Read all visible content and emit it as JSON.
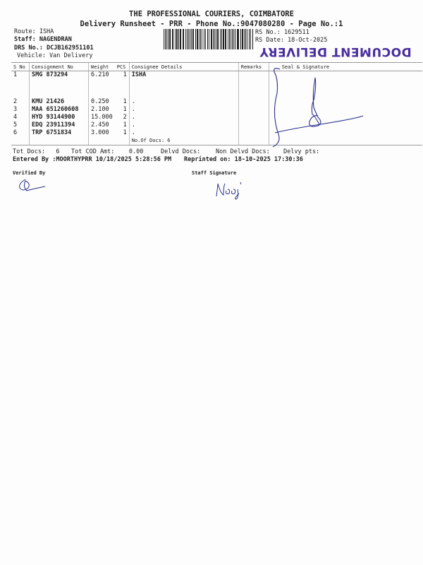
{
  "header": {
    "company": "THE PROFESSIONAL COURIERS, COIMBATORE",
    "subtitle": "Delivery Runsheet - PRR - Phone No.:9047080280 - Page No.:1"
  },
  "info": {
    "route": "Route: ISHA",
    "staff": "Staff: NAGENDRAN",
    "drs": "DRS No.: DCJB162951101",
    "vehicle": "Vehicle: Van Delivery",
    "rs_no": "RS No.: 1629511",
    "rs_date": "RS Date: 18-Oct-2025"
  },
  "stamp": "DOCUMENT DELIVERY",
  "table": {
    "headers": [
      "S No",
      "Consignment No",
      "Weight",
      "PCS",
      "Consignee Details",
      "Remarks",
      "Seal & Signature"
    ],
    "rows": [
      {
        "sno": "1",
        "cn": "SMG 873294",
        "wt": "6.210",
        "pcs": "1",
        "consignee": "ISHA"
      },
      {
        "sno": "2",
        "cn": "KMU 21426",
        "wt": "0.250",
        "pcs": "1",
        "consignee": "."
      },
      {
        "sno": "3",
        "cn": "MAA 651260608",
        "wt": "2.100",
        "pcs": "1",
        "consignee": "."
      },
      {
        "sno": "4",
        "cn": "HYD 93144900",
        "wt": "15.000",
        "pcs": "2",
        "consignee": "."
      },
      {
        "sno": "5",
        "cn": "EDQ 23911394",
        "wt": "2.450",
        "pcs": "1",
        "consignee": "."
      },
      {
        "sno": "6",
        "cn": "TRP 6751834",
        "wt": "3.000",
        "pcs": "1",
        "consignee": "."
      }
    ],
    "no_of_docs": "No.Of Docs: 6"
  },
  "totals": {
    "tot_docs": "Tot Docs:   6",
    "tot_cod": "Tot COD Amt:    0.00",
    "delvd": "Delvd Docs:",
    "non_delvd": "Non Delvd Docs:",
    "delvy_pts": "Delvy pts:"
  },
  "footer": {
    "entered": "Entered By :MOORTHYPRR 10/18/2025 5:28:56 PM",
    "reprinted": "Reprinted on: 18-10-2025 17:30:36",
    "verified_by": "Verified By",
    "staff_signature": "Staff Signature"
  },
  "colors": {
    "ink": "#2a2f8a",
    "stamp": "#4a2ea0"
  }
}
